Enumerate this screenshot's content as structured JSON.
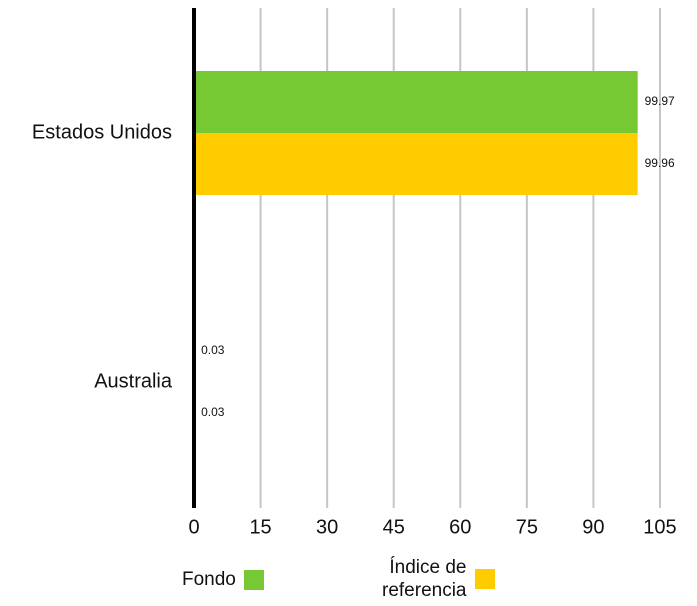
{
  "chart_data": {
    "type": "bar",
    "orientation": "horizontal",
    "categories": [
      "Estados Unidos",
      "Australia"
    ],
    "series": [
      {
        "name": "Fondo",
        "values": [
          99.97,
          0.03
        ],
        "labels": [
          "99.97",
          "0.03"
        ],
        "color": "#77c933"
      },
      {
        "name": "Índice de referencia",
        "values": [
          99.96,
          0.03
        ],
        "labels": [
          "99.96",
          "0.03"
        ],
        "color": "#ffcc00"
      }
    ],
    "xlim": [
      0,
      105
    ],
    "xticks": [
      0,
      15,
      30,
      45,
      60,
      75,
      90,
      105
    ],
    "grid": true,
    "legend_position": "bottom"
  },
  "legend": {
    "fondo_label": "Fondo",
    "indice_label_line1": "Índice de",
    "indice_label_line2": "referencia"
  }
}
